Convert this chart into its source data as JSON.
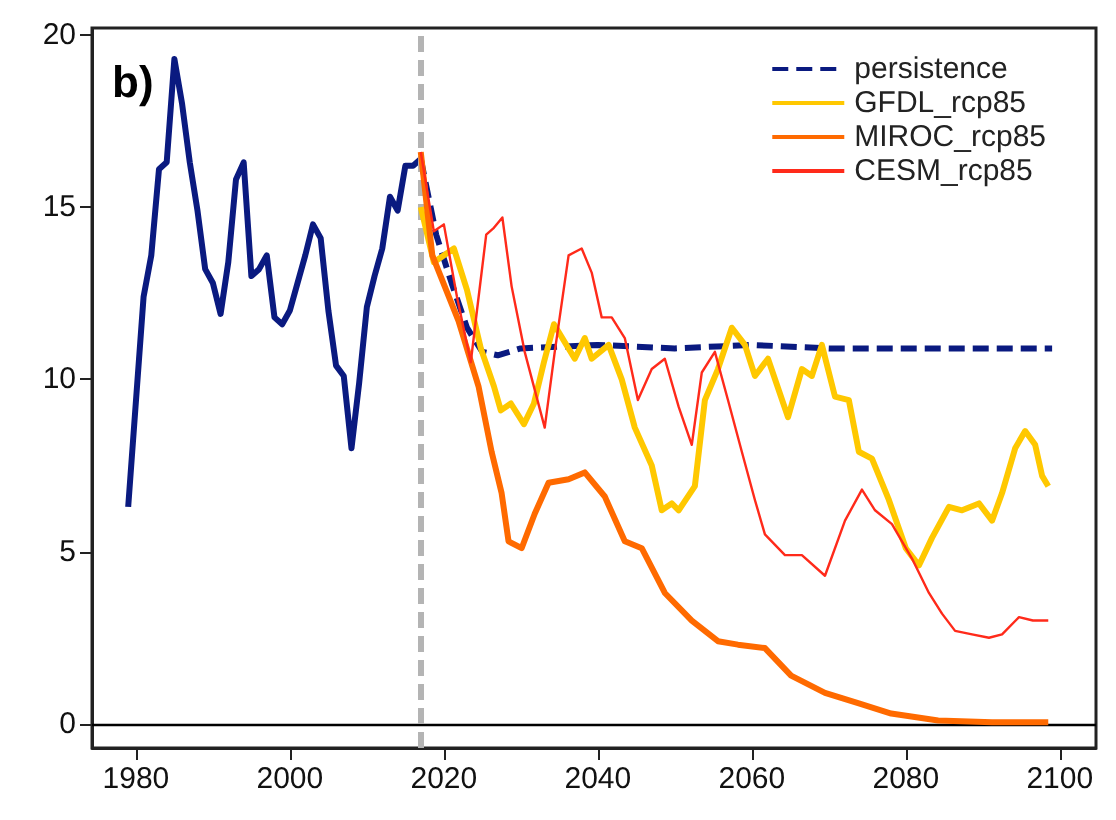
{
  "chart_data": {
    "type": "line",
    "annotations": [
      "b)"
    ],
    "xlim": [
      1974.3,
      2104.7
    ],
    "xticks": [
      1980,
      2000,
      2020,
      2040,
      2060,
      2080,
      2100
    ],
    "ylim": [
      -0.7,
      20.2
    ],
    "yticks": [
      0,
      5,
      10,
      15,
      20
    ],
    "grid": false,
    "legend": "top right",
    "marker": "none",
    "ref_lines": [
      {
        "axis": "y",
        "value": 0,
        "color": "#000000",
        "line_style": "solid"
      },
      {
        "axis": "x",
        "value": 2017,
        "color": "#b4b4b4",
        "line_style": "dashed"
      }
    ],
    "series": [
      {
        "color": "#0a1a80",
        "line_style": "solid",
        "x": [
          1979,
          1981,
          1982,
          1983,
          1984,
          1985,
          1986,
          1987,
          1988,
          1989,
          1990,
          1991,
          1992,
          1993,
          1994,
          1995,
          1996,
          1997,
          1998,
          1999,
          2000,
          2001,
          2002,
          2003,
          2004,
          2005,
          2006,
          2007,
          2008,
          2009,
          2010,
          2011,
          2012,
          2013,
          2014,
          2015,
          2016,
          2017
        ],
        "values": [
          6.3,
          12.4,
          13.6,
          16.1,
          16.3,
          19.3,
          18.0,
          16.3,
          14.9,
          13.2,
          12.8,
          11.9,
          13.4,
          15.8,
          16.3,
          13.0,
          13.2,
          13.6,
          11.8,
          11.6,
          12.0,
          12.8,
          13.6,
          14.5,
          14.1,
          12.0,
          10.4,
          10.1,
          8.0,
          9.9,
          12.1,
          13.0,
          13.8,
          15.3,
          14.9,
          16.2,
          16.2,
          16.4
        ]
      },
      {
        "name": "persistence",
        "color": "#0a1a80",
        "line_style": "dashed",
        "x": [
          2017,
          2019,
          2021,
          2023,
          2025,
          2027,
          2030,
          2040,
          2050,
          2060,
          2070,
          2080,
          2099
        ],
        "values": [
          16.4,
          14.2,
          12.8,
          11.5,
          10.8,
          10.7,
          10.9,
          11.0,
          10.9,
          11.0,
          10.9,
          10.9,
          10.9
        ]
      },
      {
        "name": "GFDL_rcp85",
        "color": "#ffc800",
        "line_style": "solid",
        "x": [
          2017,
          2018.7,
          2021.3,
          2023,
          2024.8,
          2026.5,
          2027.4,
          2028.7,
          2030.4,
          2031.7,
          2033,
          2034.3,
          2037,
          2038.3,
          2039.2,
          2041.4,
          2043.1,
          2044.8,
          2047,
          2048.3,
          2049.6,
          2050.5,
          2052.6,
          2053.9,
          2055.6,
          2057.4,
          2059.1,
          2060.4,
          2062.1,
          2064.7,
          2066.5,
          2067.8,
          2069.1,
          2070.8,
          2072.6,
          2073.9,
          2075.6,
          2077.8,
          2080,
          2081.7,
          2083.4,
          2085.6,
          2087.3,
          2089.5,
          2091.2,
          2092.5,
          2094.2,
          2095.5,
          2096.8,
          2097.7,
          2098.5
        ],
        "values": [
          15.0,
          13.4,
          13.8,
          12.6,
          10.9,
          9.8,
          9.1,
          9.3,
          8.7,
          9.3,
          10.5,
          11.6,
          10.6,
          11.2,
          10.6,
          11.0,
          10.0,
          8.6,
          7.5,
          6.2,
          6.4,
          6.2,
          6.9,
          9.4,
          10.3,
          11.5,
          11.0,
          10.1,
          10.6,
          8.9,
          10.3,
          10.1,
          11.0,
          9.5,
          9.4,
          7.9,
          7.7,
          6.5,
          5.1,
          4.6,
          5.4,
          6.3,
          6.2,
          6.4,
          5.9,
          6.7,
          8.0,
          8.5,
          8.1,
          7.2,
          6.9
        ]
      },
      {
        "name": "MIROC_rcp85",
        "color": "#ff6a00",
        "line_style": "solid",
        "x": [
          2017,
          2018.5,
          2021.9,
          2024.5,
          2026.2,
          2027.5,
          2028.4,
          2030.1,
          2031.8,
          2033.6,
          2036.2,
          2038.3,
          2040.9,
          2043.5,
          2045.7,
          2048.7,
          2052.2,
          2055.6,
          2058.2,
          2061.7,
          2065.1,
          2069.5,
          2073.8,
          2078.1,
          2084.2,
          2091.2,
          2098.5
        ],
        "values": [
          16.6,
          13.6,
          11.7,
          9.8,
          7.9,
          6.7,
          5.3,
          5.1,
          6.1,
          7.0,
          7.1,
          7.3,
          6.6,
          5.3,
          5.1,
          3.8,
          3.0,
          2.4,
          2.3,
          2.2,
          1.4,
          0.9,
          0.6,
          0.3,
          0.1,
          0.05,
          0.05
        ]
      },
      {
        "name": "CESM_rcp85",
        "color": "#ff2a1a",
        "line_style": "solid",
        "x": [
          2017,
          2018.7,
          2020,
          2021.7,
          2023.5,
          2024.3,
          2025.5,
          2026.5,
          2027.6,
          2028.8,
          2030.5,
          2033.1,
          2034.4,
          2036.2,
          2037.9,
          2039.2,
          2040.5,
          2041.8,
          2043.5,
          2045.2,
          2047,
          2048.7,
          2050.5,
          2052.2,
          2053.5,
          2055.2,
          2056.9,
          2058.7,
          2060.4,
          2061.7,
          2064.3,
          2066.5,
          2069.5,
          2072.1,
          2074.3,
          2076,
          2078.2,
          2080.8,
          2083,
          2084.7,
          2086.4,
          2088.6,
          2090.8,
          2092.5,
          2094.7,
          2096.5,
          2098.5
        ],
        "values": [
          16.6,
          14.3,
          14.5,
          12.4,
          10.5,
          12.0,
          14.2,
          14.4,
          14.7,
          12.7,
          10.8,
          8.6,
          10.8,
          13.6,
          13.8,
          13.1,
          11.8,
          11.8,
          11.2,
          9.4,
          10.3,
          10.6,
          9.2,
          8.1,
          10.2,
          10.8,
          9.4,
          7.9,
          6.5,
          5.5,
          4.9,
          4.9,
          4.3,
          5.9,
          6.8,
          6.2,
          5.8,
          4.8,
          3.8,
          3.2,
          2.7,
          2.6,
          2.5,
          2.6,
          3.1,
          3.0,
          3.0
        ]
      }
    ]
  }
}
